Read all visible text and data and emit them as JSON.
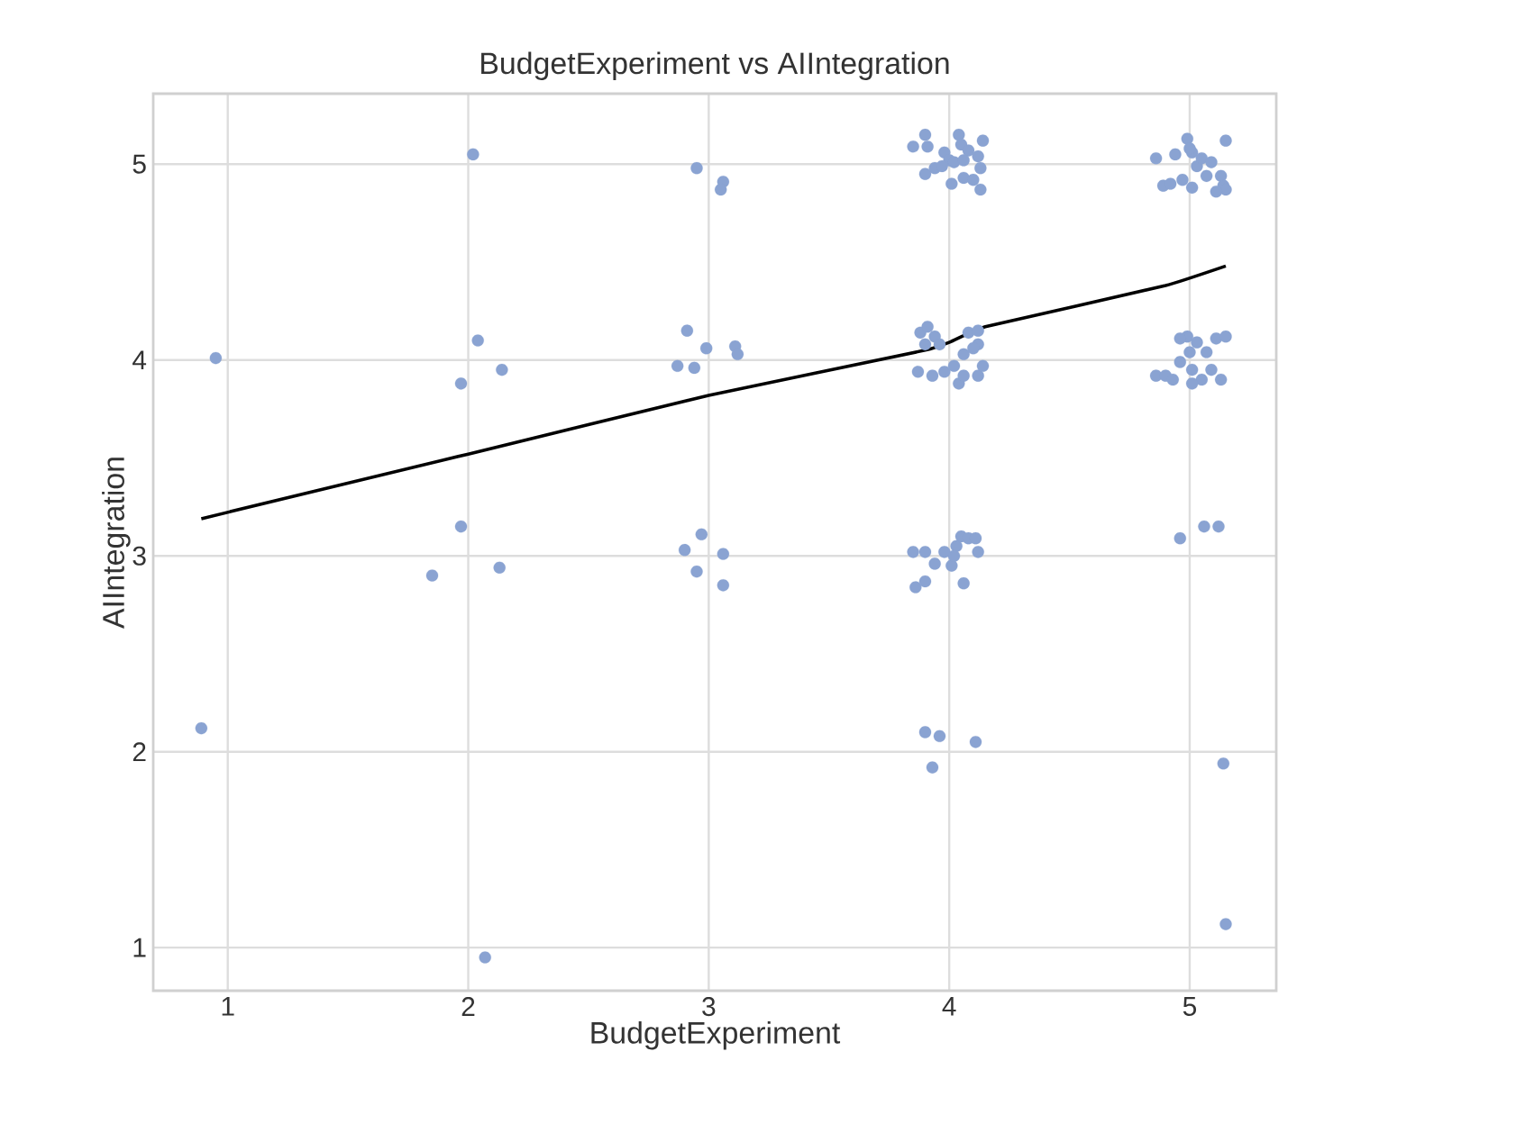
{
  "chart_data": {
    "type": "scatter",
    "title": "BudgetExperiment vs AIIntegration",
    "xlabel": "BudgetExperiment",
    "ylabel": "AIIntegration",
    "xlim": [
      0.69,
      5.36
    ],
    "ylim": [
      0.78,
      5.36
    ],
    "xticks": [
      1,
      2,
      3,
      4,
      5
    ],
    "yticks": [
      1,
      2,
      3,
      4,
      5
    ],
    "grid": true,
    "series": [
      {
        "marker": "circle",
        "color": "#8aa3d2",
        "x": [
          0.95,
          0.89,
          2.02,
          2.04,
          1.97,
          2.14,
          1.97,
          1.85,
          2.13,
          2.07,
          2.95,
          3.06,
          3.05,
          2.91,
          2.99,
          2.87,
          2.94,
          3.11,
          3.12,
          2.97,
          2.9,
          3.06,
          2.95,
          3.06,
          3.85,
          3.9,
          3.91,
          4.04,
          4.05,
          4.14,
          3.98,
          4.0,
          4.08,
          4.12,
          3.9,
          3.94,
          3.97,
          4.02,
          4.06,
          4.13,
          4.01,
          4.06,
          4.1,
          4.13,
          3.88,
          3.91,
          3.94,
          3.9,
          3.96,
          4.08,
          4.12,
          4.12,
          3.87,
          3.93,
          3.98,
          4.02,
          4.04,
          4.06,
          4.12,
          4.14,
          4.06,
          4.1,
          3.85,
          3.9,
          3.94,
          3.98,
          4.01,
          4.03,
          4.05,
          4.08,
          4.11,
          4.12,
          4.02,
          3.86,
          3.9,
          4.06,
          3.9,
          3.96,
          3.93,
          4.11,
          4.86,
          4.89,
          4.92,
          4.97,
          4.99,
          5.01,
          5.03,
          5.01,
          5.05,
          5.07,
          5.09,
          5.13,
          5.14,
          5.15,
          5.15,
          5.11,
          5.0,
          4.94,
          4.86,
          4.9,
          4.93,
          4.96,
          4.99,
          5.0,
          5.01,
          5.03,
          5.05,
          5.07,
          5.09,
          5.11,
          5.13,
          5.15,
          5.01,
          4.96,
          4.96,
          5.06,
          5.12,
          5.14,
          5.15
        ],
        "values": [
          4.01,
          2.12,
          5.05,
          4.1,
          3.88,
          3.95,
          3.15,
          2.9,
          2.94,
          0.95,
          4.98,
          4.91,
          4.87,
          4.15,
          4.06,
          3.97,
          3.96,
          4.07,
          4.03,
          3.11,
          3.03,
          3.01,
          2.92,
          2.85,
          5.09,
          5.15,
          5.09,
          5.15,
          5.1,
          5.12,
          5.06,
          5.02,
          5.07,
          5.04,
          4.95,
          4.98,
          4.99,
          5.01,
          5.02,
          4.98,
          4.9,
          4.93,
          4.92,
          4.87,
          4.14,
          4.17,
          4.12,
          4.08,
          4.08,
          4.14,
          4.15,
          4.08,
          3.94,
          3.92,
          3.94,
          3.97,
          3.88,
          3.92,
          3.92,
          3.97,
          4.03,
          4.06,
          3.02,
          3.02,
          2.96,
          3.02,
          2.95,
          3.05,
          3.1,
          3.09,
          3.09,
          3.02,
          3.0,
          2.84,
          2.87,
          2.86,
          2.1,
          2.08,
          1.92,
          2.05,
          5.03,
          4.89,
          4.9,
          4.92,
          5.13,
          5.06,
          4.99,
          4.88,
          5.03,
          4.94,
          5.01,
          4.94,
          4.89,
          5.12,
          4.87,
          4.86,
          5.08,
          5.05,
          3.92,
          3.92,
          3.9,
          3.99,
          4.12,
          4.04,
          3.95,
          4.09,
          3.9,
          4.04,
          3.95,
          4.11,
          3.9,
          4.12,
          3.88,
          4.11,
          3.09,
          3.15,
          3.15,
          1.94,
          1.12
        ]
      },
      {
        "type": "line",
        "color": "#000000",
        "x": [
          0.89,
          2.0,
          3.0,
          3.9,
          4.0,
          4.15,
          4.9,
          5.15
        ],
        "values": [
          3.19,
          3.52,
          3.82,
          4.05,
          4.09,
          4.17,
          4.38,
          4.48
        ]
      }
    ]
  }
}
